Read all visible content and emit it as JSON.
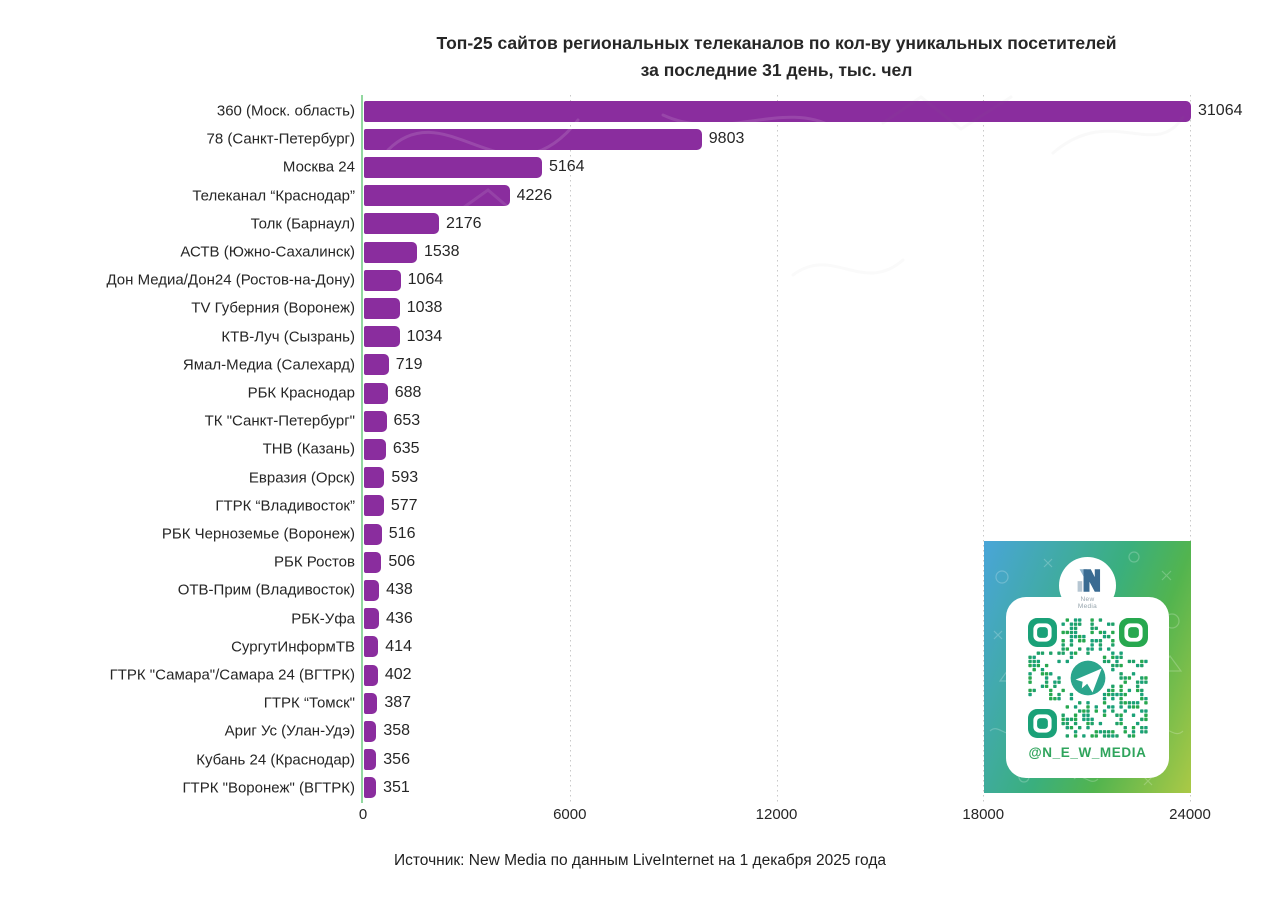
{
  "title": {
    "line1": "Топ-25 сайтов региональных телеканалов по кол-ву уникальных посетителей",
    "line2": "за последние 31 день, тыс. чел"
  },
  "source": "Источник: New Media по данным LiveInternet на 1 декабря 2025 года",
  "chart_data": {
    "type": "bar",
    "orientation": "horizontal",
    "title": "Топ-25 сайтов региональных телеканалов по кол-ву уникальных посетителей за последние 31 день, тыс. чел",
    "categories": [
      "360 (Моск. область)",
      "78 (Санкт-Петербург)",
      "Москва 24",
      "Телеканал “Краснодар”",
      "Толк (Барнаул)",
      "АСТВ (Южно-Сахалинск)",
      "Дон Медиа/Дон24 (Ростов-на-Дону)",
      "TV Губерния (Воронеж)",
      "КТВ-Луч (Сызрань)",
      "Ямал-Медиа (Салехард)",
      "РБК Краснодар",
      "ТК \"Санкт-Петербург\"",
      "ТНВ (Казань)",
      "Евразия (Орск)",
      "ГТРК “Владивосток”",
      "РБК Черноземье (Воронеж)",
      "РБК Ростов",
      "ОТВ-Прим (Владивосток)",
      "РБК-Уфа",
      "СургутИнформТВ",
      "ГТРК \"Самара\"/Самара 24 (ВГТРК)",
      "ГТРК “Томск\"",
      "Ариг Ус (Улан-Удэ)",
      "Кубань 24 (Краснодар)",
      "ГТРК \"Воронеж\" (ВГТРК)"
    ],
    "values": [
      31064,
      9803,
      5164,
      4226,
      2176,
      1538,
      1064,
      1038,
      1034,
      719,
      688,
      653,
      635,
      593,
      577,
      516,
      506,
      438,
      436,
      414,
      402,
      387,
      358,
      356,
      351
    ],
    "xlim": [
      0,
      24000
    ],
    "x_ticks": [
      0,
      6000,
      12000,
      18000,
      24000
    ],
    "grid": "vertical-dotted",
    "legend": "none",
    "bar_color": "#8a2d9e"
  },
  "qr_card": {
    "handle": "@N_E_W_MEDIA",
    "logo_line1": "New",
    "logo_line2": "Media"
  },
  "colors": {
    "bar": "#8a2d9e",
    "axis_baseline": "#92d8a0",
    "gridline": "#c9c9c9",
    "text": "#262626",
    "qr_green": "#1fa169",
    "qr_teal": "#1aa178",
    "handle_green": "#2fa45c"
  }
}
